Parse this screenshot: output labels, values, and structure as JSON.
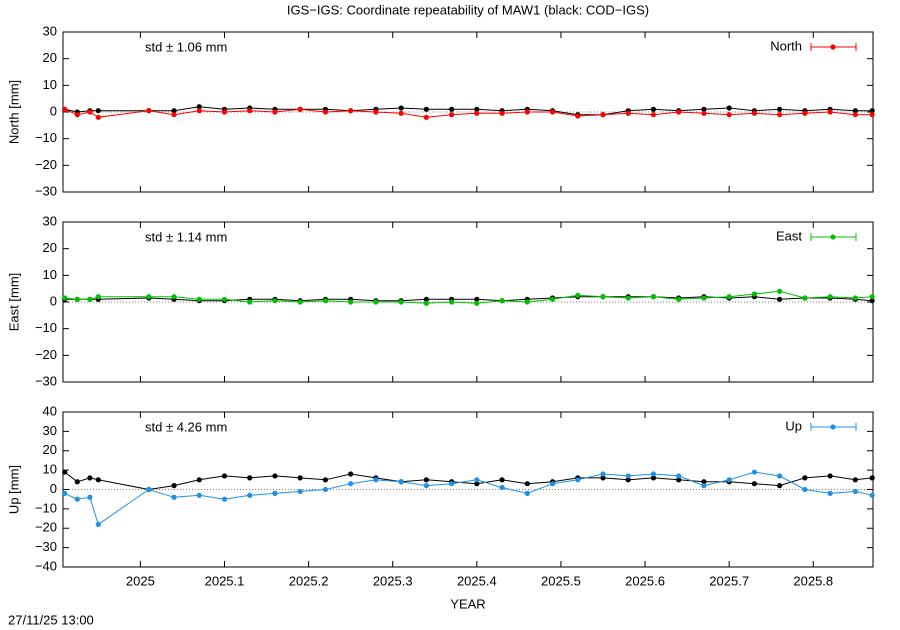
{
  "title": "IGS−IGS: Coordinate repeatability of MAW1 (black: COD−IGS)",
  "timestamp": "27/11/25 13:00",
  "chart_data": [
    {
      "type": "line",
      "ylabel": "North [mm]",
      "annotation": "std ± 1.06 mm",
      "zero_line": true,
      "xtick_labels": false,
      "xlim": [
        2024.908,
        2025.871
      ],
      "xticks": [
        2025,
        2025.1,
        2025.2,
        2025.3,
        2025.4,
        2025.5,
        2025.6,
        2025.7,
        2025.8
      ],
      "ylim": [
        -30,
        30
      ],
      "yticks": [
        {
          "value": -30,
          "label": "−30"
        },
        {
          "value": -20,
          "label": "−20"
        },
        {
          "value": -10,
          "label": "−10"
        },
        0,
        10,
        20,
        30
      ],
      "x": [
        2024.91,
        2024.925,
        2024.94,
        2024.95,
        2025.01,
        2025.04,
        2025.07,
        2025.1,
        2025.13,
        2025.16,
        2025.19,
        2025.22,
        2025.25,
        2025.28,
        2025.31,
        2025.34,
        2025.37,
        2025.4,
        2025.43,
        2025.46,
        2025.49,
        2025.52,
        2025.55,
        2025.58,
        2025.61,
        2025.64,
        2025.67,
        2025.7,
        2025.73,
        2025.76,
        2025.79,
        2025.82,
        2025.85,
        2025.87
      ],
      "series": [
        {
          "color": "#000000",
          "values": [
            1,
            0,
            0.5,
            0.5,
            0.5,
            0.5,
            2,
            1,
            1.5,
            1,
            1,
            1,
            0.5,
            1,
            1.5,
            1,
            1,
            1,
            0.5,
            1,
            0.5,
            -1,
            -1,
            0.5,
            1,
            0.5,
            1,
            1.5,
            0.5,
            1,
            0.5,
            1,
            0.5,
            0.5
          ]
        },
        {
          "name": "North",
          "color": "#ff0000",
          "values": [
            1,
            -1,
            0,
            -2,
            0.5,
            -1,
            0.5,
            0,
            0.5,
            0,
            1,
            0,
            0.5,
            0,
            -0.5,
            -2,
            -1,
            -0.5,
            -0.5,
            0,
            0,
            -1.5,
            -1,
            -0.5,
            -1,
            0,
            -0.5,
            -1,
            -0.5,
            -1,
            -0.5,
            0,
            -1,
            -1
          ]
        }
      ]
    },
    {
      "type": "line",
      "ylabel": "East [mm]",
      "annotation": "std ± 1.14 mm",
      "zero_line": true,
      "xtick_labels": false,
      "xlim": [
        2024.908,
        2025.871
      ],
      "xticks": [
        2025,
        2025.1,
        2025.2,
        2025.3,
        2025.4,
        2025.5,
        2025.6,
        2025.7,
        2025.8
      ],
      "ylim": [
        -30,
        30
      ],
      "yticks": [
        {
          "value": -30,
          "label": "−30"
        },
        {
          "value": -20,
          "label": "−20"
        },
        {
          "value": -10,
          "label": "−10"
        },
        0,
        10,
        20,
        30
      ],
      "x": [
        2024.91,
        2024.925,
        2024.94,
        2024.95,
        2025.01,
        2025.04,
        2025.07,
        2025.1,
        2025.13,
        2025.16,
        2025.19,
        2025.22,
        2025.25,
        2025.28,
        2025.31,
        2025.34,
        2025.37,
        2025.4,
        2025.43,
        2025.46,
        2025.49,
        2025.52,
        2025.55,
        2025.58,
        2025.61,
        2025.64,
        2025.67,
        2025.7,
        2025.73,
        2025.76,
        2025.79,
        2025.82,
        2025.85,
        2025.87
      ],
      "series": [
        {
          "color": "#000000",
          "values": [
            1,
            1,
            1,
            1,
            1.5,
            1,
            0.5,
            0.5,
            1,
            1,
            0.5,
            1,
            1,
            0.5,
            0.5,
            1,
            1,
            1,
            0.5,
            1,
            1.5,
            2,
            2,
            2,
            2,
            1.5,
            2,
            1.5,
            2,
            1,
            1.5,
            1.5,
            1,
            0.5
          ]
        },
        {
          "name": "East",
          "color": "#00c000",
          "values": [
            1.5,
            1,
            1,
            2,
            2,
            2,
            1,
            1,
            0,
            0.5,
            0,
            0.5,
            0,
            0,
            0,
            -0.5,
            0,
            -0.5,
            0.5,
            0,
            1,
            2.5,
            2,
            1.5,
            2,
            1,
            1.5,
            2,
            3,
            4,
            1.5,
            2,
            1.5,
            2
          ]
        }
      ]
    },
    {
      "type": "line",
      "ylabel": "Up [mm]",
      "xlabel": "YEAR",
      "annotation": "std ± 4.26 mm",
      "zero_line": true,
      "xtick_labels": true,
      "xlim": [
        2024.908,
        2025.871
      ],
      "xticks": [
        2025,
        2025.1,
        2025.2,
        2025.3,
        2025.4,
        2025.5,
        2025.6,
        2025.7,
        2025.8
      ],
      "ylim": [
        -40,
        40
      ],
      "yticks": [
        {
          "value": -40,
          "label": "−40"
        },
        {
          "value": -30,
          "label": "−30"
        },
        {
          "value": -20,
          "label": "−20"
        },
        {
          "value": -10,
          "label": "−10"
        },
        0,
        10,
        20,
        30,
        40
      ],
      "x": [
        2024.91,
        2024.925,
        2024.94,
        2024.95,
        2025.01,
        2025.04,
        2025.07,
        2025.1,
        2025.13,
        2025.16,
        2025.19,
        2025.22,
        2025.25,
        2025.28,
        2025.31,
        2025.34,
        2025.37,
        2025.4,
        2025.43,
        2025.46,
        2025.49,
        2025.52,
        2025.55,
        2025.58,
        2025.61,
        2025.64,
        2025.67,
        2025.7,
        2025.73,
        2025.76,
        2025.79,
        2025.82,
        2025.85,
        2025.87
      ],
      "series": [
        {
          "color": "#000000",
          "values": [
            9,
            4,
            6,
            5,
            0,
            2,
            5,
            7,
            6,
            7,
            6,
            5,
            8,
            6,
            4,
            5,
            4,
            3,
            5,
            3,
            4,
            6,
            6,
            5,
            6,
            5,
            4,
            4,
            3,
            2,
            6,
            7,
            5,
            6
          ]
        },
        {
          "name": "Up",
          "color": "#1e90e6",
          "values": [
            -2,
            -5,
            -4,
            -18,
            0,
            -4,
            -3,
            -5,
            -3,
            -2,
            -1,
            0,
            3,
            5,
            4,
            2,
            3,
            5,
            1,
            -2,
            3,
            5,
            8,
            7,
            8,
            7,
            2,
            5,
            9,
            7,
            0,
            -2,
            -1,
            -3
          ]
        }
      ]
    }
  ]
}
